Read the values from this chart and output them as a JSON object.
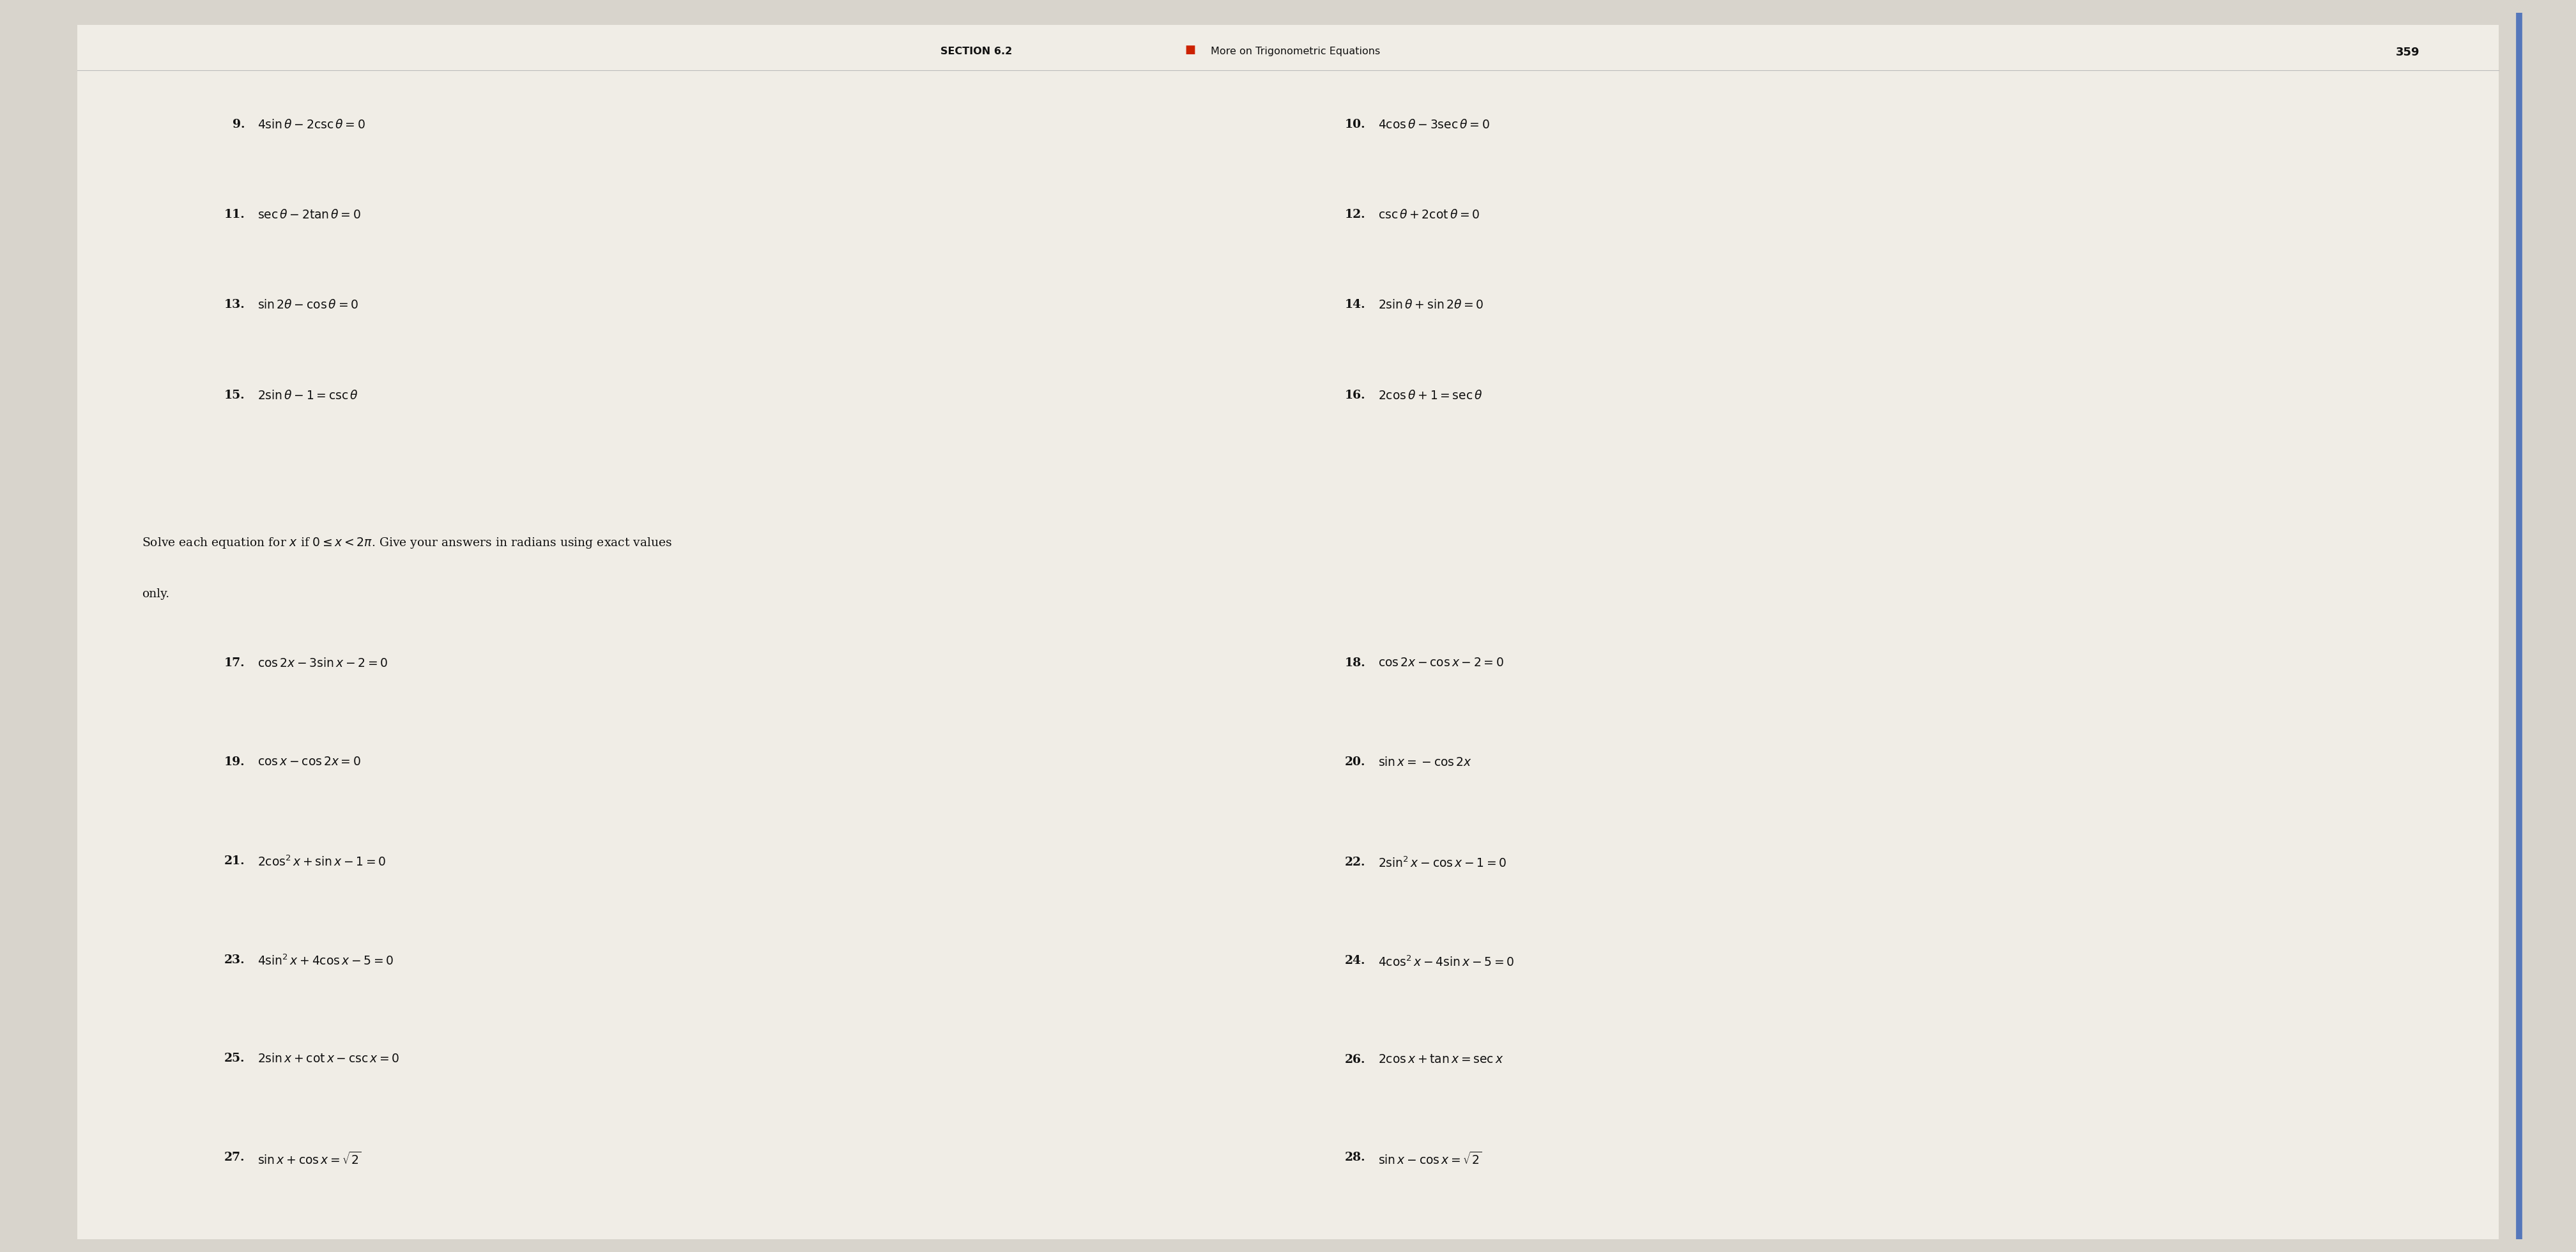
{
  "background_color": "#d8d4cc",
  "page_color": "#f0ede6",
  "header_section": "SECTION 6.2",
  "header_separator": "■",
  "header_title": "More on Trigonometric Equations",
  "page_number": "359",
  "lines_left": [
    {
      "num": "9.",
      "eq": "$4 \\sin \\theta - 2 \\csc \\theta = 0$"
    },
    {
      "num": "11.",
      "eq": "$\\sec \\theta - 2 \\tan \\theta = 0$"
    },
    {
      "num": "13.",
      "eq": "$\\sin 2\\theta - \\cos \\theta = 0$"
    },
    {
      "num": "15.",
      "eq": "$2 \\sin \\theta - 1 = \\csc \\theta$"
    }
  ],
  "lines_right": [
    {
      "num": "10.",
      "eq": "$4 \\cos \\theta - 3 \\sec \\theta = 0$"
    },
    {
      "num": "12.",
      "eq": "$\\csc \\theta + 2 \\cot \\theta = 0$"
    },
    {
      "num": "14.",
      "eq": "$2 \\sin \\theta + \\sin 2\\theta = 0$"
    },
    {
      "num": "16.",
      "eq": "$2 \\cos \\theta + 1 = \\sec \\theta$"
    }
  ],
  "instruction_line1": "Solve each equation for $x$ if $0 \\leq x < 2\\pi$. Give your answers in radians using exact values",
  "instruction_line2": "only.",
  "problems_left": [
    {
      "num": "17.",
      "eq": "$\\cos 2x - 3 \\sin x - 2 = 0$"
    },
    {
      "num": "19.",
      "eq": "$\\cos x - \\cos 2x = 0$"
    },
    {
      "num": "21.",
      "eq": "$2 \\cos^2 x + \\sin x - 1 = 0$"
    },
    {
      "num": "23.",
      "eq": "$4 \\sin^2 x + 4 \\cos x - 5 = 0$"
    },
    {
      "num": "25.",
      "eq": "$2 \\sin x + \\cot x - \\csc x = 0$"
    },
    {
      "num": "27.",
      "eq": "$\\sin x + \\cos x = \\sqrt{2}$"
    }
  ],
  "problems_right": [
    {
      "num": "18.",
      "eq": "$\\cos 2x - \\cos x - 2 = 0$"
    },
    {
      "num": "20.",
      "eq": "$\\sin x = -\\cos 2x$"
    },
    {
      "num": "22.",
      "eq": "$2 \\sin^2 x - \\cos x - 1 = 0$"
    },
    {
      "num": "24.",
      "eq": "$4 \\cos^2 x - 4 \\sin x - 5 = 0$"
    },
    {
      "num": "26.",
      "eq": "$2 \\cos x + \\tan x = \\sec x$"
    },
    {
      "num": "28.",
      "eq": "$\\sin x - \\cos x = \\sqrt{2}$"
    }
  ],
  "separator_color": "#cc2200",
  "blue_line_color": "#5577bb",
  "text_color": "#111111"
}
